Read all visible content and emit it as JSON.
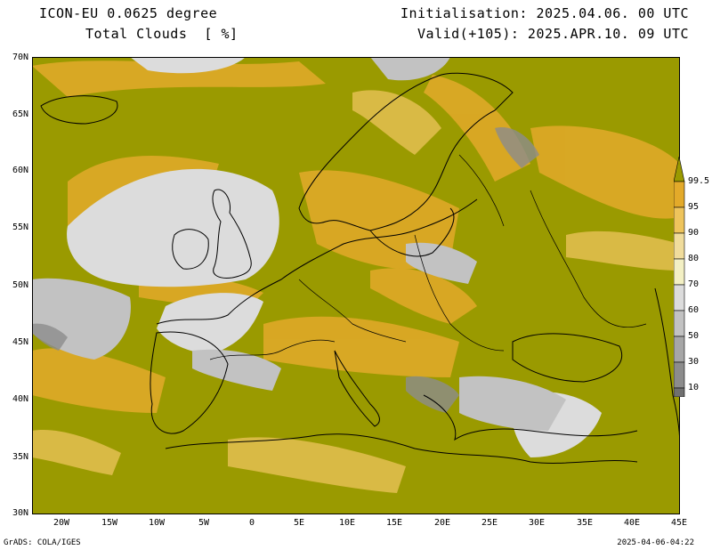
{
  "header": {
    "model": "ICON-EU 0.0625 degree",
    "variable": "Total Clouds  [ %]",
    "initialisation": "Initialisation: 2025.04.06. 00 UTC",
    "valid": "Valid(+105): 2025.APR.10. 09 UTC"
  },
  "axes": {
    "lat_labels": [
      "70N",
      "65N",
      "60N",
      "55N",
      "50N",
      "45N",
      "40N",
      "35N",
      "30N"
    ],
    "lon_labels": [
      "20W",
      "15W",
      "10W",
      "5W",
      "0",
      "5E",
      "10E",
      "15E",
      "20E",
      "25E",
      "30E",
      "35E",
      "40E",
      "45E"
    ]
  },
  "colorbar": {
    "labels": [
      "99.5",
      "95",
      "90",
      "80",
      "70",
      "60",
      "50",
      "30",
      "10"
    ],
    "colors": {
      "c99": "#9a9a00",
      "c95": "#e3aa2a",
      "c90": "#eec45c",
      "c80": "#f0dc9c",
      "c70": "#f3f0c4",
      "c60": "#dcdcdc",
      "c50": "#c2c2c2",
      "c30": "#a6a6a6",
      "c10": "#8c8c8c",
      "c0": "#707070"
    }
  },
  "footer": {
    "left": "GrADS: COLA/IGES",
    "right": "2025-04-06-04:22"
  }
}
